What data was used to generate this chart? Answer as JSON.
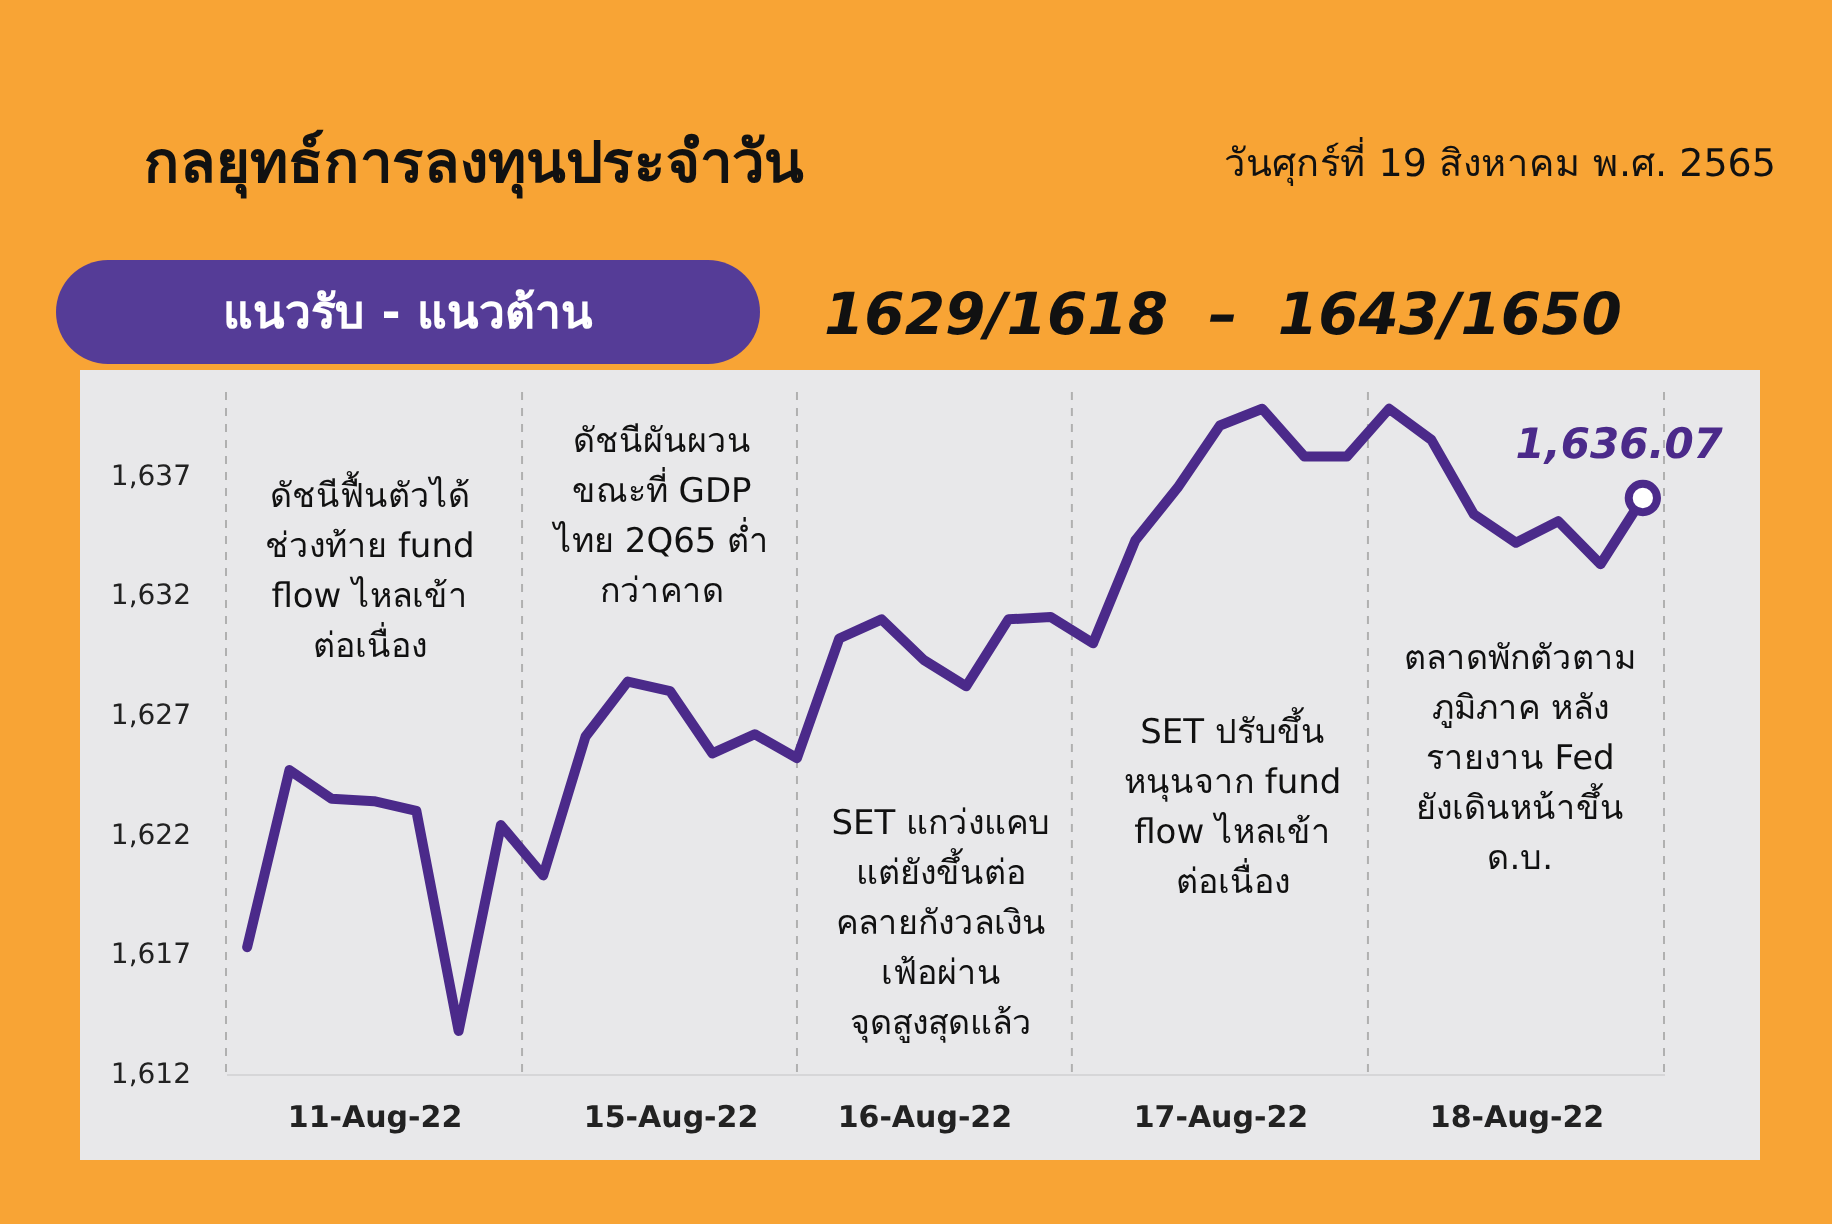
{
  "chart_data": {
    "type": "line",
    "title": "กลยุทธ์การลงทุนประจำวัน",
    "subtitle": "วันศุกร์ที่ 19 สิงหาคม พ.ศ. 2565",
    "categories": [
      null,
      null,
      null,
      "11-Aug-22",
      null,
      null,
      null,
      null,
      null,
      null,
      "15-Aug-22",
      null,
      null,
      null,
      null,
      null,
      "16-Aug-22",
      null,
      null,
      null,
      null,
      null,
      null,
      "17-Aug-22",
      null,
      null,
      null,
      null,
      null,
      null,
      "18-Aug-22",
      null,
      null,
      null
    ],
    "ylim": [
      1612,
      1640.5
    ],
    "yticks": [
      {
        "value": 1612,
        "label": "1,612"
      },
      {
        "value": 1617,
        "label": "1,617"
      },
      {
        "value": 1622,
        "label": "1,622"
      },
      {
        "value": 1627,
        "label": "1,627"
      },
      {
        "value": 1632,
        "label": "1,632"
      },
      {
        "value": 1637,
        "label": "1,637"
      }
    ],
    "line_style": "solid",
    "series": [
      {
        "color": "#4b2a8a",
        "values": [
          1617.3,
          1624.7,
          1623.5,
          1623.4,
          1623.0,
          1613.8,
          1622.4,
          1620.3,
          1626.1,
          1628.4,
          1628.0,
          1625.4,
          1626.2,
          1625.2,
          1630.2,
          1631.0,
          1629.3,
          1628.2,
          1631.0,
          1631.1,
          1630.0,
          1634.3,
          1636.5,
          1639.1,
          1639.8,
          1637.8,
          1637.8,
          1639.8,
          1638.5,
          1635.4,
          1634.2,
          1635.1,
          1633.3,
          1636.07
        ]
      }
    ],
    "annotations": [
      "แนวรับ - แนวต้าน",
      "1629/1618  –  1643/1650",
      "ดัชนีฟื้นตัวได้\nช่วงท้าย fund\nflow ไหลเข้า\nต่อเนื่อง",
      "ดัชนีผันผวน\nขณะที่ GDP\nไทย 2Q65 ต่ำ\nกว่าคาด",
      "SET แกว่งแคบ\nแต่ยังขึ้นต่อ\nคลายกังวลเงิน\nเฟ้อผ่าน\nจุดสูงสุดแล้ว",
      "SET ปรับขึ้น\nหนุนจาก fund\nflow ไหลเข้า\nต่อเนื่อง",
      "ตลาดพักตัวตาม\nภูมิภาค หลัง\nรายงาน Fed\nยังเดินหน้าขึ้น\nด.บ.",
      {
        "text": "1,636.07",
        "y": 1636.07
      }
    ]
  }
}
